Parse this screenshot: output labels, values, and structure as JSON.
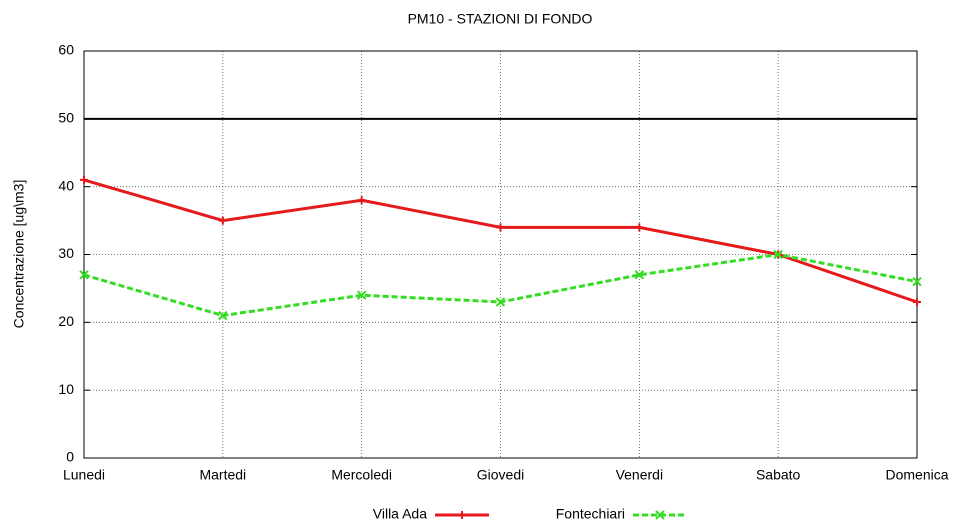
{
  "chart_data": {
    "type": "line",
    "title": "PM10 - STAZIONI DI FONDO",
    "y_label": "Concentrazione [ug\\m3]",
    "categories": [
      "Lunedi",
      "Martedi",
      "Mercoledi",
      "Giovedi",
      "Venerdi",
      "Sabato",
      "Domenica"
    ],
    "series": [
      {
        "name": "Villa Ada",
        "color": "#e41a1c",
        "marker": "plus",
        "dashed": false,
        "values": [
          41,
          35,
          38,
          34,
          34,
          30,
          23
        ]
      },
      {
        "name": "Fontechiari",
        "color": "#33dd22",
        "marker": "cross",
        "dashed": true,
        "values": [
          27,
          21,
          24,
          23,
          27,
          30,
          26
        ]
      }
    ],
    "reference_line": 50,
    "ylim": [
      0,
      60
    ],
    "yticks": [
      0,
      10,
      20,
      30,
      40,
      50,
      60
    ],
    "grid": true,
    "legend": "bottom"
  }
}
